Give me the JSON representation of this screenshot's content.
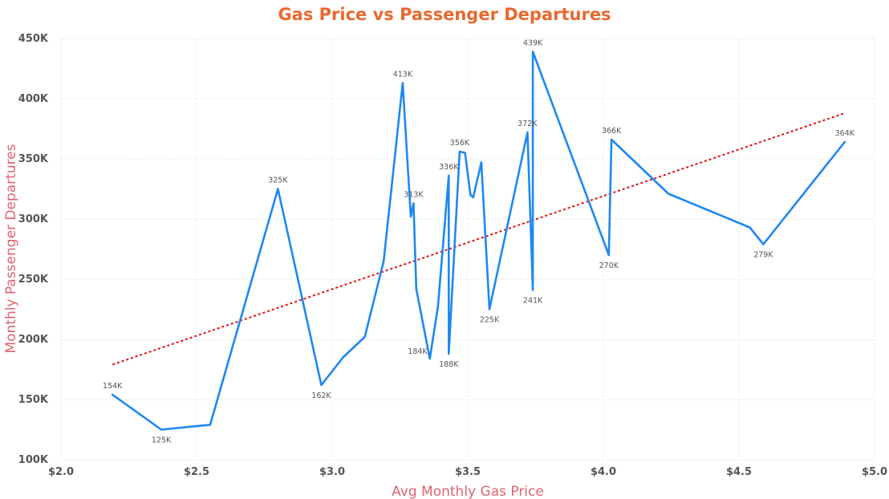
{
  "chart_data": {
    "type": "line",
    "title": "Gas Price vs Passenger Departures",
    "xlabel": "Avg Monthly Gas Price",
    "ylabel": "Monthly Passenger Departures",
    "xlim": [
      2.0,
      5.0
    ],
    "ylim": [
      100000,
      450000
    ],
    "x_ticks": [
      {
        "value": 2.0,
        "label": "$2.0"
      },
      {
        "value": 2.5,
        "label": "$2.5"
      },
      {
        "value": 3.0,
        "label": "$3.0"
      },
      {
        "value": 3.5,
        "label": "$3.5"
      },
      {
        "value": 4.0,
        "label": "$4.0"
      },
      {
        "value": 4.5,
        "label": "$4.5"
      },
      {
        "value": 5.0,
        "label": "$5.0"
      }
    ],
    "y_ticks": [
      {
        "value": 100000,
        "label": "100K"
      },
      {
        "value": 150000,
        "label": "150K"
      },
      {
        "value": 200000,
        "label": "200K"
      },
      {
        "value": 250000,
        "label": "250K"
      },
      {
        "value": 300000,
        "label": "300K"
      },
      {
        "value": 350000,
        "label": "350K"
      },
      {
        "value": 400000,
        "label": "400K"
      },
      {
        "value": 450000,
        "label": "450K"
      }
    ],
    "grid": true,
    "series": [
      {
        "points": [
          {
            "x": 2.19,
            "y": 154000,
            "label": "154K",
            "label_pos": "above"
          },
          {
            "x": 2.37,
            "y": 125000,
            "label": "125K",
            "label_pos": "below"
          },
          {
            "x": 2.55,
            "y": 129000
          },
          {
            "x": 2.8,
            "y": 325000,
            "label": "325K",
            "label_pos": "above"
          },
          {
            "x": 2.96,
            "y": 162000,
            "label": "162K",
            "label_pos": "below"
          },
          {
            "x": 3.04,
            "y": 185000
          },
          {
            "x": 3.12,
            "y": 202000
          },
          {
            "x": 3.19,
            "y": 265000
          },
          {
            "x": 3.26,
            "y": 413000,
            "label": "413K",
            "label_pos": "above"
          },
          {
            "x": 3.29,
            "y": 302000
          },
          {
            "x": 3.3,
            "y": 313000,
            "label": "313K",
            "label_pos": "above"
          },
          {
            "x": 3.31,
            "y": 242000
          },
          {
            "x": 3.36,
            "y": 184000,
            "label": "184K",
            "label_pos": "left"
          },
          {
            "x": 3.39,
            "y": 227000
          },
          {
            "x": 3.43,
            "y": 336000,
            "label": "336K",
            "label_pos": "above"
          },
          {
            "x": 3.43,
            "y": 188000,
            "label": "188K",
            "label_pos": "below"
          },
          {
            "x": 3.47,
            "y": 356000,
            "label": "356K",
            "label_pos": "above"
          },
          {
            "x": 3.49,
            "y": 355000
          },
          {
            "x": 3.51,
            "y": 320000
          },
          {
            "x": 3.52,
            "y": 318000
          },
          {
            "x": 3.55,
            "y": 347000
          },
          {
            "x": 3.58,
            "y": 225000,
            "label": "225K",
            "label_pos": "below"
          },
          {
            "x": 3.72,
            "y": 372000,
            "label": "372K",
            "label_pos": "above"
          },
          {
            "x": 3.74,
            "y": 241000,
            "label": "241K",
            "label_pos": "below"
          },
          {
            "x": 3.74,
            "y": 439000,
            "label": "439K",
            "label_pos": "above"
          },
          {
            "x": 4.02,
            "y": 270000,
            "label": "270K",
            "label_pos": "below"
          },
          {
            "x": 4.03,
            "y": 366000,
            "label": "366K",
            "label_pos": "above"
          },
          {
            "x": 4.24,
            "y": 321000
          },
          {
            "x": 4.54,
            "y": 293000
          },
          {
            "x": 4.59,
            "y": 279000,
            "label": "279K",
            "label_pos": "below"
          },
          {
            "x": 4.89,
            "y": 364000,
            "label": "364K",
            "label_pos": "above"
          }
        ]
      }
    ],
    "trendline": {
      "x": [
        2.19,
        4.89
      ],
      "y": [
        179000,
        388000
      ],
      "style": "dotted"
    },
    "colors": {
      "line": "#1e88f0",
      "trend": "#e01010",
      "title": "#e8692e",
      "axis_title": "#e06470",
      "grid": "#e4e4e4"
    }
  }
}
